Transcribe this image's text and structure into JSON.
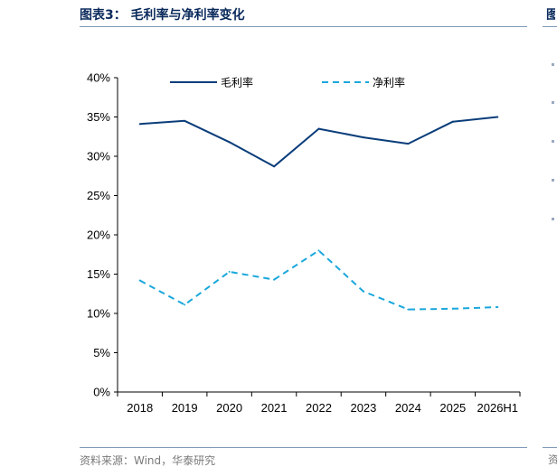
{
  "figure": {
    "title": "图表3：  毛利率与净利率变化",
    "source": "资料来源：Wind，华泰研究"
  },
  "colors": {
    "gross_margin": "#0a3d7a",
    "net_margin": "#1aa7dc",
    "title": "#0a2a5c",
    "axis": "#000000",
    "rule": "#7f9ab8"
  },
  "chart_data": {
    "type": "line",
    "title": "",
    "xlabel": "",
    "ylabel": "",
    "categories": [
      "2018",
      "2019",
      "2020",
      "2021",
      "2022",
      "2023",
      "2024",
      "2025",
      "2026H1"
    ],
    "ylim": [
      0,
      40
    ],
    "yticks": [
      "0%",
      "5%",
      "10%",
      "15%",
      "20%",
      "25%",
      "30%",
      "35%",
      "40%"
    ],
    "grid": false,
    "legend": "top",
    "series": [
      {
        "name": "毛利率",
        "style": "solid",
        "values": [
          34.1,
          34.5,
          31.8,
          28.7,
          33.5,
          32.4,
          31.6,
          34.4,
          35.0
        ]
      },
      {
        "name": "净利率",
        "style": "dashed",
        "values": [
          14.2,
          11.1,
          15.3,
          14.3,
          18.0,
          12.8,
          10.5,
          10.6,
          10.8
        ]
      }
    ]
  }
}
